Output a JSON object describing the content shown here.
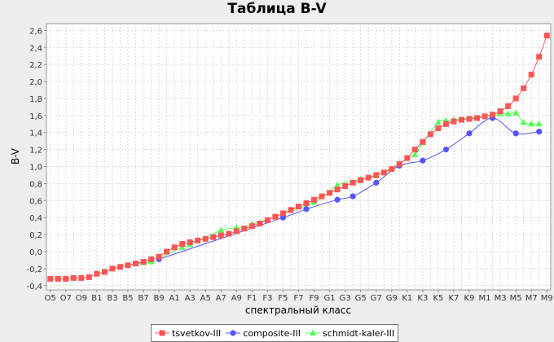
{
  "chart_data": {
    "type": "line",
    "title": "Таблица B-V",
    "xlabel": "спектральный класс",
    "ylabel": "B-V",
    "ylim": [
      -0.45,
      2.68
    ],
    "yticks": [
      "-0,4",
      "-0,2",
      "0,0",
      "0,2",
      "0,4",
      "0,6",
      "0,8",
      "1,0",
      "1,2",
      "1,4",
      "1,6",
      "1,8",
      "2,0",
      "2,2",
      "2,4",
      "2,6"
    ],
    "categories": [
      "O5",
      "O7",
      "O9",
      "B1",
      "B3",
      "B5",
      "B7",
      "B9",
      "A1",
      "A3",
      "A5",
      "A7",
      "A9",
      "F1",
      "F3",
      "F5",
      "F7",
      "F9",
      "G1",
      "G3",
      "G5",
      "G7",
      "G9",
      "K1",
      "K3",
      "K5",
      "K7",
      "K9",
      "M1",
      "M3",
      "M5",
      "M7",
      "M9"
    ],
    "grid": true,
    "legend_position": "bottom",
    "series": [
      {
        "name": "tsvetkov-III",
        "color": "#ff5555",
        "marker": "square",
        "points": [
          [
            "O5",
            -0.32
          ],
          [
            "O6",
            -0.32
          ],
          [
            "O7",
            -0.32
          ],
          [
            "O8",
            -0.31
          ],
          [
            "O9",
            -0.31
          ],
          [
            "B0",
            -0.3
          ],
          [
            "B1",
            -0.26
          ],
          [
            "B2",
            -0.24
          ],
          [
            "B3",
            -0.2
          ],
          [
            "B4",
            -0.18
          ],
          [
            "B5",
            -0.16
          ],
          [
            "B6",
            -0.14
          ],
          [
            "B7",
            -0.12
          ],
          [
            "B8",
            -0.09
          ],
          [
            "B9",
            -0.06
          ],
          [
            "A0",
            0.0
          ],
          [
            "A1",
            0.05
          ],
          [
            "A2",
            0.09
          ],
          [
            "A3",
            0.11
          ],
          [
            "A4",
            0.13
          ],
          [
            "A5",
            0.15
          ],
          [
            "A6",
            0.17
          ],
          [
            "A7",
            0.19
          ],
          [
            "A8",
            0.21
          ],
          [
            "A9",
            0.24
          ],
          [
            "F0",
            0.27
          ],
          [
            "F1",
            0.3
          ],
          [
            "F2",
            0.33
          ],
          [
            "F3",
            0.37
          ],
          [
            "F4",
            0.41
          ],
          [
            "F5",
            0.45
          ],
          [
            "F6",
            0.49
          ],
          [
            "F7",
            0.53
          ],
          [
            "F8",
            0.57
          ],
          [
            "F9",
            0.61
          ],
          [
            "G0",
            0.65
          ],
          [
            "G1",
            0.69
          ],
          [
            "G2",
            0.73
          ],
          [
            "G3",
            0.77
          ],
          [
            "G4",
            0.81
          ],
          [
            "G5",
            0.84
          ],
          [
            "G6",
            0.87
          ],
          [
            "G7",
            0.9
          ],
          [
            "G8",
            0.93
          ],
          [
            "G9",
            0.97
          ],
          [
            "K0",
            1.03
          ],
          [
            "K1",
            1.1
          ],
          [
            "K2",
            1.2
          ],
          [
            "K3",
            1.29
          ],
          [
            "K4",
            1.38
          ],
          [
            "K5",
            1.45
          ],
          [
            "K6",
            1.5
          ],
          [
            "K7",
            1.53
          ],
          [
            "K8",
            1.55
          ],
          [
            "K9",
            1.56
          ],
          [
            "M0",
            1.57
          ],
          [
            "M1",
            1.59
          ],
          [
            "M2",
            1.61
          ],
          [
            "M3",
            1.65
          ],
          [
            "M4",
            1.71
          ],
          [
            "M5",
            1.8
          ],
          [
            "M6",
            1.92
          ],
          [
            "M7",
            2.08
          ],
          [
            "M8",
            2.29
          ],
          [
            "M9",
            2.54
          ]
        ]
      },
      {
        "name": "composite-III",
        "color": "#5555ff",
        "marker": "circle",
        "points": [
          [
            "B9",
            -0.09
          ],
          [
            "F5",
            0.4
          ],
          [
            "F8",
            0.5
          ],
          [
            "G2",
            0.61
          ],
          [
            "G4",
            0.65
          ],
          [
            "G7",
            0.81
          ],
          [
            "K0",
            1.01
          ],
          [
            "K3",
            1.07
          ],
          [
            "K6",
            1.2
          ],
          [
            "K9",
            1.39
          ],
          [
            "M2",
            1.57
          ],
          [
            "M5",
            1.39
          ],
          [
            "M8",
            1.41
          ]
        ]
      },
      {
        "name": "schmidt-kaler-III",
        "color": "#55ff55",
        "marker": "triangle",
        "points": [
          [
            "B5",
            -0.16
          ],
          [
            "B7",
            -0.13
          ],
          [
            "B8",
            -0.12
          ],
          [
            "A2",
            0.05
          ],
          [
            "A3",
            0.08
          ],
          [
            "A7",
            0.25
          ],
          [
            "A9",
            0.28
          ],
          [
            "F1",
            0.32
          ],
          [
            "F9",
            0.58
          ],
          [
            "G2",
            0.78
          ],
          [
            "G5",
            0.85
          ],
          [
            "G7",
            0.89
          ],
          [
            "K0",
            1.04
          ],
          [
            "K2",
            1.14
          ],
          [
            "K3",
            1.28
          ],
          [
            "K5",
            1.52
          ],
          [
            "K6",
            1.54
          ],
          [
            "K7",
            1.55
          ],
          [
            "M2",
            1.6
          ],
          [
            "M3",
            1.62
          ],
          [
            "M4",
            1.62
          ],
          [
            "M5",
            1.63
          ],
          [
            "M6",
            1.52
          ],
          [
            "M7",
            1.5
          ],
          [
            "M8",
            1.5
          ]
        ]
      }
    ]
  }
}
